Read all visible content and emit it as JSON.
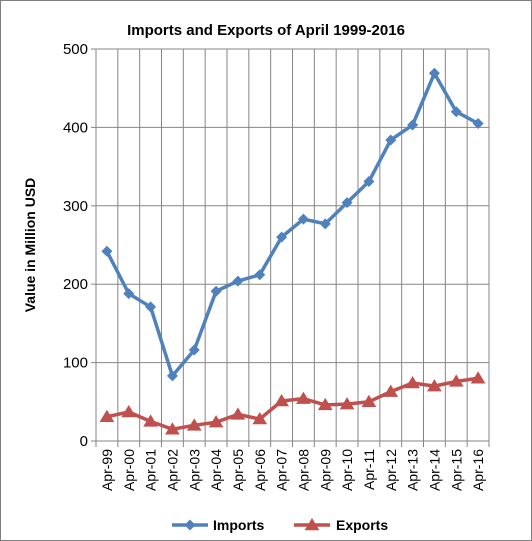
{
  "chart_data": {
    "type": "line",
    "title": "Imports and Exports of April 1999-2016",
    "xlabel": "",
    "ylabel": "Value in  Million  USD",
    "ylim": [
      0,
      500
    ],
    "yticks": [
      0,
      100,
      200,
      300,
      400,
      500
    ],
    "grid": "vertical and horizontal",
    "legend_position": "bottom",
    "categories": [
      "Apr-99",
      "Apr-00",
      "Apr-01",
      "Apr-02",
      "Apr-03",
      "Apr-04",
      "Apr-05",
      "Apr-06",
      "Apr-07",
      "Apr-08",
      "Apr-09",
      "Apr-10",
      "Apr-11",
      "Apr-12",
      "Apr-13",
      "Apr-14",
      "Apr-15",
      "Apr-16"
    ],
    "series": [
      {
        "name": "Imports",
        "color": "#4f81bd",
        "marker": "diamond",
        "values": [
          242,
          188,
          171,
          83,
          116,
          191,
          204,
          212,
          260,
          283,
          277,
          304,
          331,
          384,
          403,
          469,
          420,
          405
        ]
      },
      {
        "name": "Exports",
        "color": "#c0504d",
        "marker": "triangle",
        "values": [
          31,
          37,
          25,
          15,
          20,
          24,
          34,
          28,
          51,
          54,
          46,
          47,
          50,
          63,
          74,
          70,
          76,
          80
        ]
      }
    ]
  }
}
